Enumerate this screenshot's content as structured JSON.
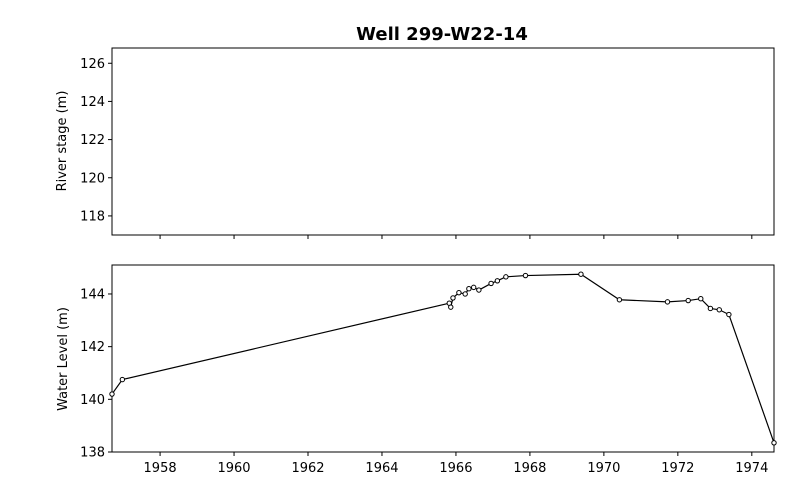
{
  "chart_data": [
    {
      "type": "line",
      "title": "Well 299-W22-14",
      "xlabel": "",
      "ylabel": "River stage (m)",
      "xlim": [
        1956.7,
        1974.6
      ],
      "ylim": [
        117.0,
        126.8
      ],
      "xticks": [
        1958,
        1960,
        1962,
        1964,
        1966,
        1968,
        1970,
        1972,
        1974
      ],
      "xtick_labels_visible": false,
      "yticks": [
        118,
        120,
        122,
        124,
        126
      ],
      "ytick_labels": [
        "118",
        "120",
        "122",
        "124",
        "126"
      ],
      "grid": false,
      "series": []
    },
    {
      "type": "line",
      "title": "",
      "xlabel": "",
      "ylabel": "Water Level (m)",
      "xlim": [
        1956.7,
        1974.6
      ],
      "ylim": [
        138.0,
        145.1
      ],
      "xticks": [
        1958,
        1960,
        1962,
        1964,
        1966,
        1968,
        1970,
        1972,
        1974
      ],
      "xtick_labels": [
        "1958",
        "1960",
        "1962",
        "1964",
        "1966",
        "1968",
        "1970",
        "1972",
        "1974"
      ],
      "yticks": [
        138,
        140,
        142,
        144
      ],
      "ytick_labels": [
        "138",
        "140",
        "142",
        "144"
      ],
      "grid": false,
      "color": "#000000",
      "marker": "open-circle",
      "series": [
        {
          "x": [
            1956.7,
            1956.98,
            1965.82,
            1965.86,
            1965.92,
            1966.08,
            1966.25,
            1966.35,
            1966.48,
            1966.62,
            1966.95,
            1967.12,
            1967.35,
            1967.88,
            1969.38,
            1970.42,
            1971.72,
            1972.28,
            1972.62,
            1972.88,
            1973.12,
            1973.38,
            1974.6
          ],
          "y": [
            140.2,
            140.75,
            143.65,
            143.5,
            143.85,
            144.05,
            144.0,
            144.2,
            144.25,
            144.15,
            144.4,
            144.5,
            144.65,
            144.7,
            144.75,
            143.78,
            143.7,
            143.75,
            143.82,
            143.45,
            143.4,
            143.22,
            138.35
          ]
        }
      ]
    }
  ]
}
